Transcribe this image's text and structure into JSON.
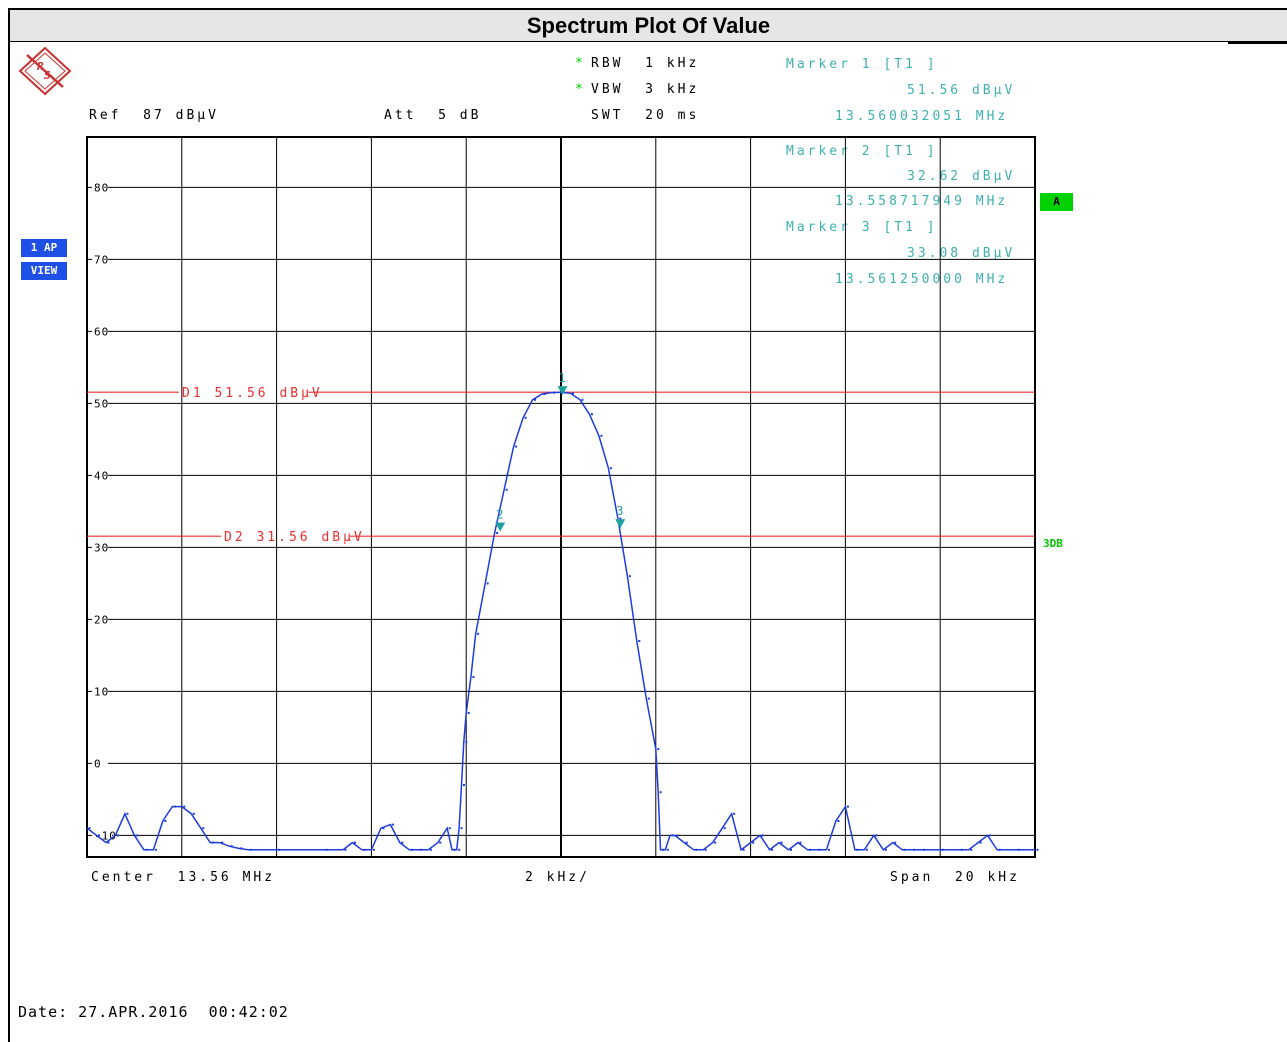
{
  "header": {
    "title": "Spectrum Plot Of Value",
    "ref": "Ref  87 dBµV",
    "att": "Att  5 dB",
    "rbw": "RBW  1 kHz",
    "vbw": "VBW  3 kHz",
    "swt": "SWT  20 ms",
    "star": "*"
  },
  "markers_panel": [
    {
      "title": "Marker 1 [T1 ]",
      "level": "51.56 dBµV",
      "freq": "13.560032051 MHz"
    },
    {
      "title": "Marker 2 [T1 ]",
      "level": "32.62 dBµV",
      "freq": "13.558717949 MHz"
    },
    {
      "title": "Marker 3 [T1 ]",
      "level": "33.08 dBµV",
      "freq": "13.561250000 MHz"
    }
  ],
  "side": {
    "ap": "1 AP",
    "view": "VIEW",
    "a_badge": "A",
    "threedb": "3DB"
  },
  "footer": {
    "center": "Center  13.56 MHz",
    "div": "2 kHz/",
    "span": "Span  20 kHz",
    "date": "Date: 27.APR.2016  00:42:02"
  },
  "colors": {
    "trace": "#1e3cdc",
    "display_line": "#e83030",
    "marker": "#1ea0a0",
    "grid": "#000000"
  },
  "icons": {
    "logo": "rohde-schwarz-logo-icon"
  },
  "chart_data": {
    "type": "line",
    "x_unit": "kHz offset from center",
    "center_mhz": 13.56,
    "span_khz": 20,
    "xlim": [
      -10,
      10
    ],
    "ylim": [
      -13,
      87
    ],
    "y_ticks": [
      80,
      70,
      60,
      50,
      40,
      30,
      20,
      10,
      0,
      -10
    ],
    "y_tick_labels": [
      "80",
      "70",
      "60",
      "50",
      "40",
      "30",
      "20",
      "10",
      "0",
      "-10"
    ],
    "display_lines": [
      {
        "label": "D1 51.56 dBµV",
        "value": 51.56
      },
      {
        "label": "D2 31.56 dBµV",
        "value": 31.56
      }
    ],
    "markers": [
      {
        "label": "1",
        "x": 0.032,
        "y": 51.56
      },
      {
        "label": "2",
        "x": -1.282,
        "y": 32.62
      },
      {
        "label": "3",
        "x": 1.25,
        "y": 33.08
      }
    ],
    "trace": {
      "x": [
        -10,
        -9.8,
        -9.6,
        -9.4,
        -9.2,
        -9.0,
        -8.8,
        -8.6,
        -8.4,
        -8.2,
        -8.0,
        -7.8,
        -7.6,
        -7.4,
        -7.2,
        -7.0,
        -6.8,
        -6.6,
        -6.0,
        -5.0,
        -4.6,
        -4.4,
        -4.2,
        -4.0,
        -3.8,
        -3.6,
        -3.4,
        -3.2,
        -3.0,
        -2.8,
        -2.6,
        -2.4,
        -2.3,
        -2.2,
        -2.15,
        -2.1,
        -2.05,
        -2.0,
        -1.9,
        -1.8,
        -1.6,
        -1.4,
        -1.2,
        -1.0,
        -0.8,
        -0.6,
        -0.4,
        -0.2,
        0.0,
        0.2,
        0.4,
        0.6,
        0.8,
        1.0,
        1.2,
        1.4,
        1.6,
        1.8,
        2.0,
        2.05,
        2.1,
        2.2,
        2.3,
        2.4,
        2.6,
        2.8,
        3.0,
        3.2,
        3.4,
        3.6,
        3.8,
        4.0,
        4.2,
        4.4,
        4.6,
        4.8,
        5.0,
        5.2,
        5.4,
        5.6,
        5.8,
        6.0,
        6.2,
        6.4,
        6.6,
        6.8,
        7.0,
        7.2,
        7.4,
        7.6,
        8.0,
        8.4,
        8.6,
        8.8,
        9.0,
        9.2,
        9.6,
        10.0
      ],
      "y": [
        -9,
        -10,
        -11,
        -10,
        -7,
        -10,
        -12,
        -12,
        -8,
        -6,
        -6,
        -7,
        -9,
        -11,
        -11,
        -11.5,
        -11.8,
        -12,
        -12,
        -12,
        -12,
        -11,
        -12,
        -12,
        -9,
        -8.5,
        -11,
        -12,
        -12,
        -12,
        -11,
        -9,
        -12,
        -12,
        -9,
        -3,
        3,
        7,
        12,
        18,
        25,
        32,
        38,
        44,
        48,
        50.5,
        51.3,
        51.5,
        51.56,
        51.4,
        50.5,
        48.5,
        45.5,
        41,
        34,
        26,
        17,
        9,
        2,
        -4,
        -12,
        -12,
        -10,
        -10,
        -11,
        -12,
        -12,
        -11,
        -9,
        -7,
        -12,
        -11,
        -10,
        -12,
        -11,
        -12,
        -11,
        -12,
        -12,
        -12,
        -8,
        -6,
        -12,
        -12,
        -10,
        -12,
        -11,
        -12,
        -12,
        -12,
        -12,
        -12,
        -12,
        -11,
        -10,
        -12,
        -12,
        -12
      ]
    }
  }
}
